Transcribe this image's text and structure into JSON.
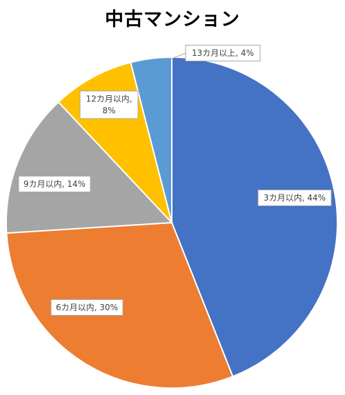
{
  "chart_data": {
    "type": "pie",
    "title": "中古マンション",
    "categories": [
      "3カ月以内",
      "6カ月以内",
      "9カ月以内",
      "12カ月以内",
      "13カ月以上"
    ],
    "values": [
      44,
      30,
      14,
      8,
      4
    ],
    "colors": [
      "#4472C4",
      "#ED7D31",
      "#A5A5A5",
      "#FFC000",
      "#5B9BD5"
    ],
    "data_labels": [
      [
        "3カ月以内, 44%"
      ],
      [
        "6カ月以内, 30%"
      ],
      [
        "9カ月以内, 14%"
      ],
      [
        "12カ月以内,",
        "8%"
      ],
      [
        "13カ月以上, 4%"
      ]
    ],
    "legend": "none",
    "start_angle_deg": 0,
    "direction": "clockwise"
  }
}
